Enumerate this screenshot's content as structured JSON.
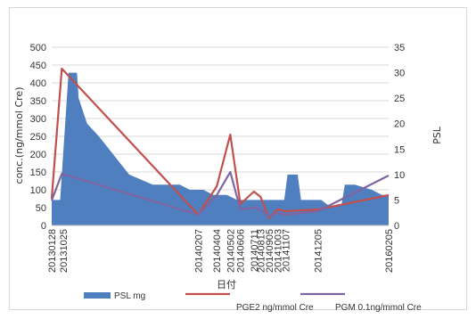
{
  "chart_data": {
    "type": "area+line",
    "xlabel": "日付",
    "ylabel_left": "conc.(ng/mmol Cre)",
    "ylabel_right": "PSL",
    "ylim_left": [
      0,
      500
    ],
    "ylim_right": [
      0,
      35
    ],
    "yticks_left": [
      "0",
      "50",
      "100",
      "150",
      "200",
      "250",
      "300",
      "350",
      "400",
      "450",
      "500"
    ],
    "yticks_right": [
      "0",
      "5",
      "10",
      "15",
      "20",
      "25",
      "30",
      "35"
    ],
    "legend_position": "bottom",
    "colors": {
      "psl": "#4f7fbf",
      "pge2": "#c0504d",
      "pgm": "#8064a2",
      "grid": "#d9d9d9"
    },
    "x_labels": [
      {
        "label": "20130128",
        "t": 0.0
      },
      {
        "label": "20131025",
        "t": 0.035
      },
      {
        "label": "20140207",
        "t": 0.435
      },
      {
        "label": "20140404",
        "t": 0.49
      },
      {
        "label": "20140502",
        "t": 0.53
      },
      {
        "label": "20140606",
        "t": 0.56
      },
      {
        "label": "20140711",
        "t": 0.6
      },
      {
        "label": "20140813",
        "t": 0.62
      },
      {
        "label": "20140905",
        "t": 0.645
      },
      {
        "label": "20141003",
        "t": 0.67
      },
      {
        "label": "20141107",
        "t": 0.695
      },
      {
        "label": "20141205",
        "t": 0.79
      },
      {
        "label": "20160205",
        "t": 1.0
      }
    ],
    "series": [
      {
        "name": "PSL mg",
        "type": "area",
        "axis": "right",
        "points": [
          [
            0.0,
            5
          ],
          [
            0.025,
            5
          ],
          [
            0.03,
            10
          ],
          [
            0.05,
            30
          ],
          [
            0.075,
            30
          ],
          [
            0.08,
            25
          ],
          [
            0.105,
            20
          ],
          [
            0.14,
            17.5
          ],
          [
            0.17,
            15
          ],
          [
            0.2,
            12.5
          ],
          [
            0.23,
            10
          ],
          [
            0.265,
            9
          ],
          [
            0.3,
            8
          ],
          [
            0.33,
            8
          ],
          [
            0.38,
            8
          ],
          [
            0.41,
            7
          ],
          [
            0.45,
            7
          ],
          [
            0.48,
            6
          ],
          [
            0.52,
            6
          ],
          [
            0.55,
            5
          ],
          [
            0.58,
            5
          ],
          [
            0.62,
            5
          ],
          [
            0.65,
            5
          ],
          [
            0.68,
            5
          ],
          [
            0.69,
            5
          ],
          [
            0.7,
            10
          ],
          [
            0.73,
            10
          ],
          [
            0.74,
            5
          ],
          [
            0.8,
            5
          ],
          [
            0.83,
            3.5
          ],
          [
            0.86,
            4
          ],
          [
            0.87,
            8
          ],
          [
            0.9,
            8
          ],
          [
            0.95,
            7
          ],
          [
            0.98,
            6
          ],
          [
            1.0,
            6
          ]
        ]
      },
      {
        "name": "PGE2 ng/mmol Cre",
        "type": "line",
        "axis": "left",
        "points": [
          [
            0.0,
            75
          ],
          [
            0.03,
            440
          ],
          [
            0.435,
            30
          ],
          [
            0.49,
            110
          ],
          [
            0.53,
            255
          ],
          [
            0.56,
            60
          ],
          [
            0.6,
            95
          ],
          [
            0.62,
            80
          ],
          [
            0.645,
            20
          ],
          [
            0.67,
            45
          ],
          [
            0.695,
            40
          ],
          [
            0.79,
            45
          ],
          [
            1.0,
            85
          ]
        ]
      },
      {
        "name": "PGM 0.1ng/mmol Cre",
        "type": "line",
        "axis": "left",
        "points": [
          [
            0.0,
            70
          ],
          [
            0.03,
            145
          ],
          [
            0.435,
            30
          ],
          [
            0.49,
            85
          ],
          [
            0.53,
            150
          ],
          [
            0.56,
            45
          ],
          [
            0.6,
            50
          ],
          [
            0.62,
            45
          ],
          [
            0.645,
            25
          ],
          [
            0.67,
            35
          ],
          [
            0.695,
            30
          ],
          [
            0.79,
            40
          ],
          [
            1.0,
            140
          ]
        ]
      }
    ]
  }
}
